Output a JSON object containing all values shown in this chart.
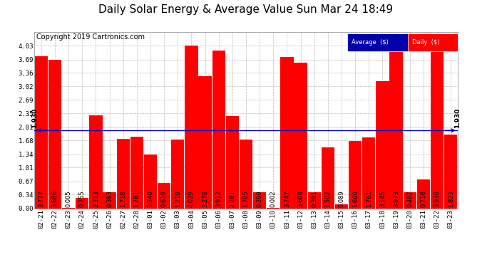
{
  "title": "Daily Solar Energy & Average Value Sun Mar 24 18:49",
  "copyright": "Copyright 2019 Cartronics.com",
  "categories": [
    "02-21",
    "02-22",
    "02-23",
    "02-24",
    "02-25",
    "02-26",
    "02-27",
    "02-28",
    "03-01",
    "03-02",
    "03-03",
    "03-04",
    "03-05",
    "03-06",
    "03-07",
    "03-08",
    "03-09",
    "03-10",
    "03-11",
    "03-12",
    "03-13",
    "03-14",
    "03-15",
    "03-16",
    "03-17",
    "03-18",
    "03-19",
    "03-20",
    "03-21",
    "03-22",
    "03-23"
  ],
  "values": [
    3.777,
    3.686,
    0.005,
    0.255,
    2.313,
    0.393,
    1.718,
    1.781,
    1.34,
    0.619,
    1.71,
    4.029,
    3.278,
    3.912,
    2.281,
    1.705,
    0.399,
    0.002,
    3.747,
    3.608,
    0.391,
    1.502,
    0.089,
    1.66,
    1.761,
    3.145,
    3.973,
    0.402,
    0.716,
    3.938,
    1.823
  ],
  "average": 1.93,
  "bar_color": "#FF0000",
  "average_line_color": "#0000CC",
  "ylim": [
    0,
    4.37
  ],
  "yticks": [
    0.0,
    0.34,
    0.67,
    1.01,
    1.34,
    1.68,
    2.01,
    2.35,
    2.69,
    3.02,
    3.36,
    3.69,
    4.03
  ],
  "background_color": "#FFFFFF",
  "plot_bg_color": "#FFFFFF",
  "grid_color": "#BBBBBB",
  "title_fontsize": 11,
  "copyright_fontsize": 7,
  "tick_fontsize": 6.5,
  "bar_value_fontsize": 6,
  "legend_avg_color": "#0000AA",
  "legend_daily_color": "#FF0000",
  "avg_label": "1.930"
}
